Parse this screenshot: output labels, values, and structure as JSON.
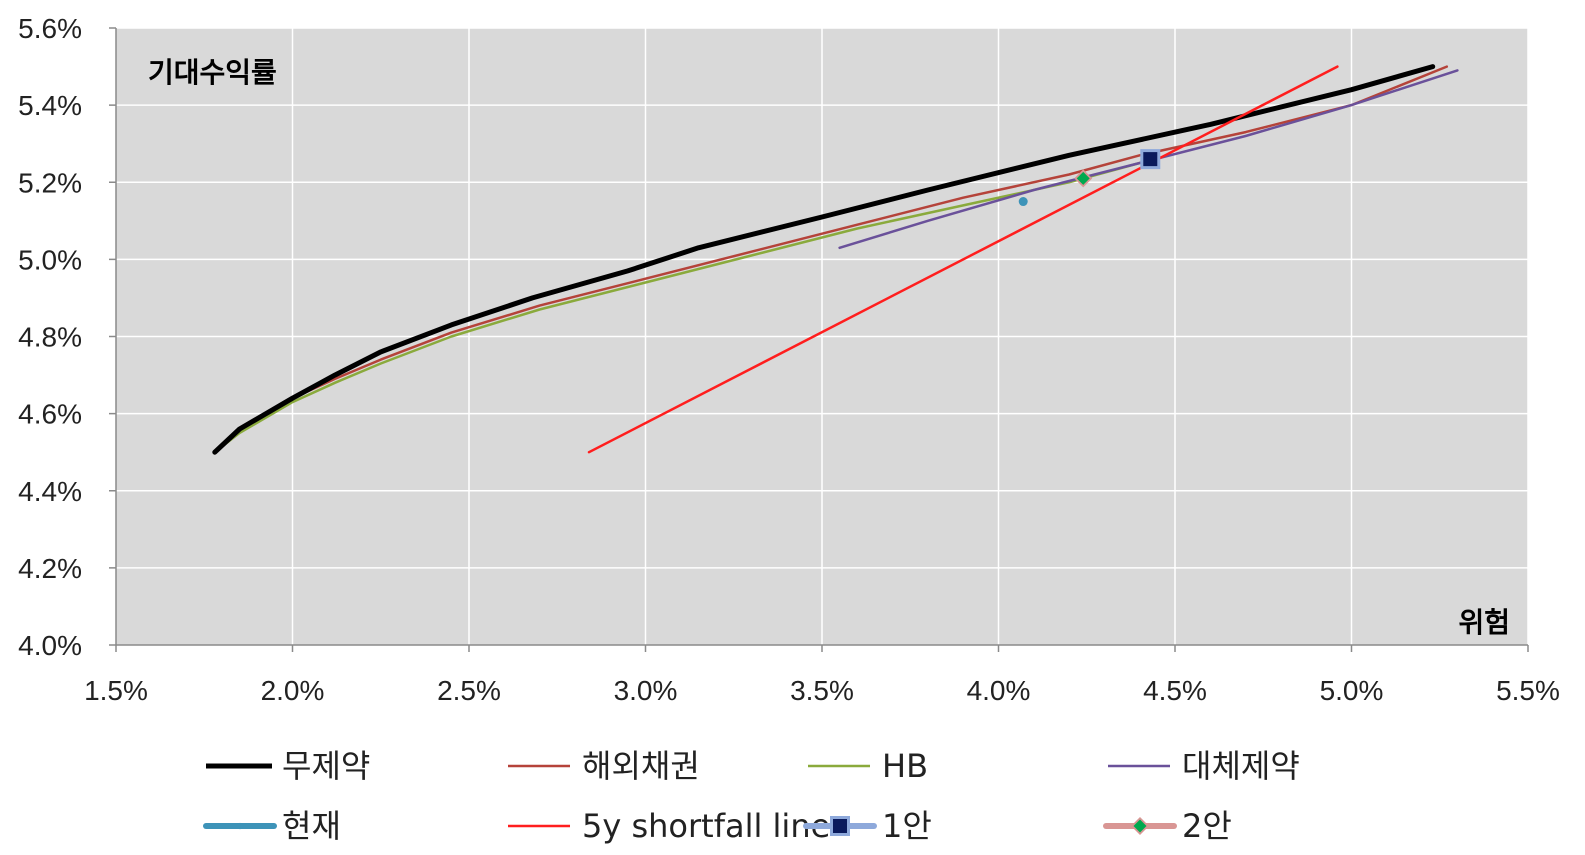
{
  "chart_data": {
    "type": "line",
    "title": "",
    "ylabel": "기대수익률",
    "xlabel": "위험",
    "xlim": [
      0.015,
      0.055
    ],
    "ylim": [
      0.04,
      0.056
    ],
    "x_ticks": [
      0.015,
      0.02,
      0.025,
      0.03,
      0.035,
      0.04,
      0.045,
      0.05,
      0.055
    ],
    "x_tick_labels": [
      "1.5%",
      "2.0%",
      "2.5%",
      "3.0%",
      "3.5%",
      "4.0%",
      "4.5%",
      "5.0%",
      "5.5%"
    ],
    "y_ticks": [
      0.04,
      0.042,
      0.044,
      0.046,
      0.048,
      0.05,
      0.052,
      0.054,
      0.056
    ],
    "y_tick_labels": [
      "4.0%",
      "4.2%",
      "4.4%",
      "4.6%",
      "4.8%",
      "5.0%",
      "5.2%",
      "5.4%",
      "5.6%"
    ],
    "grid": true,
    "plot_background": "#d9d9d9",
    "legend_position": "bottom",
    "series": [
      {
        "name": "무제약",
        "kind": "line",
        "color": "#000000",
        "x": [
          0.0178,
          0.0185,
          0.02,
          0.0212,
          0.0225,
          0.0245,
          0.0268,
          0.0295,
          0.0315,
          0.035,
          0.038,
          0.042,
          0.046,
          0.05,
          0.0523
        ],
        "y": [
          0.045,
          0.0456,
          0.0464,
          0.047,
          0.0476,
          0.0483,
          0.049,
          0.0497,
          0.0503,
          0.0511,
          0.0518,
          0.0527,
          0.0535,
          0.0544,
          0.055
        ]
      },
      {
        "name": "해외채권",
        "kind": "line",
        "color": "#b5433a",
        "x": [
          0.0178,
          0.0185,
          0.02,
          0.0212,
          0.0225,
          0.0245,
          0.027,
          0.03,
          0.033,
          0.036,
          0.039,
          0.042,
          0.044,
          0.047,
          0.05,
          0.0527
        ],
        "y": [
          0.045,
          0.0456,
          0.0464,
          0.0469,
          0.0474,
          0.0481,
          0.0488,
          0.0495,
          0.0502,
          0.0509,
          0.0516,
          0.0522,
          0.0527,
          0.0533,
          0.054,
          0.055
        ]
      },
      {
        "name": "HB",
        "kind": "line",
        "color": "#8aaa3c",
        "x": [
          0.0178,
          0.0185,
          0.02,
          0.0212,
          0.0225,
          0.0245,
          0.027,
          0.03,
          0.033,
          0.036,
          0.039,
          0.042,
          0.044
        ],
        "y": [
          0.045,
          0.0455,
          0.0463,
          0.0468,
          0.0473,
          0.048,
          0.0487,
          0.0494,
          0.0501,
          0.0508,
          0.0514,
          0.052,
          0.0525
        ]
      },
      {
        "name": "대체제약",
        "kind": "line",
        "color": "#6a519a",
        "x": [
          0.0355,
          0.038,
          0.041,
          0.044,
          0.047,
          0.05,
          0.053
        ],
        "y": [
          0.0503,
          0.051,
          0.0518,
          0.0525,
          0.0532,
          0.054,
          0.0549
        ]
      },
      {
        "name": "현재",
        "kind": "point",
        "color": "#3d93b8",
        "x": [
          0.0407
        ],
        "y": [
          0.0515
        ]
      },
      {
        "name": "5y shortfall line",
        "kind": "line",
        "color": "#ff1e1e",
        "x": [
          0.0284,
          0.0496
        ],
        "y": [
          0.045,
          0.055
        ]
      },
      {
        "name": "1안",
        "kind": "point",
        "color": "#0a1a5c",
        "outline": "#8ea9db",
        "x": [
          0.0443
        ],
        "y": [
          0.0526
        ]
      },
      {
        "name": "2안",
        "kind": "point",
        "color": "#00a94f",
        "outline": "#d99694",
        "x": [
          0.0424
        ],
        "y": [
          0.0521
        ]
      }
    ]
  }
}
